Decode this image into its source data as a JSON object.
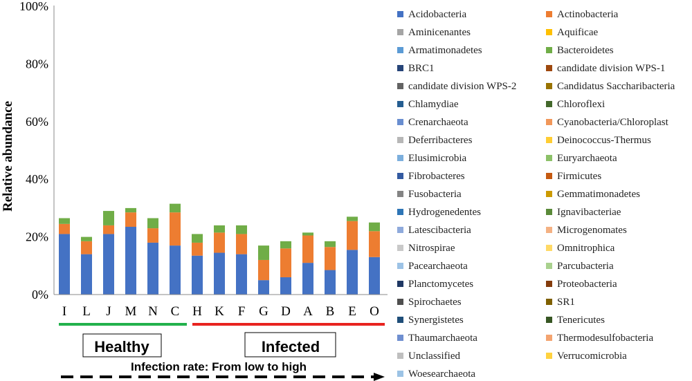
{
  "chart_data": {
    "type": "bar",
    "stacked": true,
    "ylabel": "Relative abundance",
    "ylim": [
      0,
      100
    ],
    "yticks": [
      "0%",
      "20%",
      "40%",
      "60%",
      "80%",
      "100%"
    ],
    "categories": [
      "I",
      "L",
      "J",
      "M",
      "N",
      "C",
      "H",
      "K",
      "F",
      "G",
      "D",
      "A",
      "B",
      "E",
      "O"
    ],
    "groups": [
      {
        "label": "Healthy",
        "members": [
          "I",
          "L",
          "J",
          "M",
          "N",
          "C"
        ],
        "color": "#22B14C"
      },
      {
        "label": "Infected",
        "members": [
          "H",
          "K",
          "F",
          "G",
          "D",
          "A",
          "B",
          "E",
          "O"
        ],
        "color": "#E8231F"
      }
    ],
    "arrow_label": "Infection rate: From low to high",
    "series": [
      {
        "name": "Acidobacteria",
        "color": "#4472C4",
        "values": [
          21,
          14,
          21,
          23.5,
          18,
          17,
          13.5,
          14.5,
          14,
          5,
          6,
          11,
          8.5,
          15.5,
          13
        ]
      },
      {
        "name": "Actinobacteria",
        "color": "#ED7D31",
        "values": [
          3.5,
          4.5,
          3,
          5,
          5,
          11.5,
          4.5,
          7,
          7,
          7,
          10,
          9.5,
          8,
          10,
          9
        ]
      },
      {
        "name": "Aminicenantes",
        "color": "#A5A5A5",
        "values": [
          0,
          0,
          0,
          0,
          0,
          0,
          0,
          0,
          0,
          0,
          0,
          0,
          0,
          0,
          0
        ]
      },
      {
        "name": "Aquificae",
        "color": "#FFC000",
        "values": [
          0,
          0,
          0,
          0,
          0,
          0,
          0,
          0,
          0,
          0,
          0,
          0,
          0,
          0,
          0
        ]
      },
      {
        "name": "Armatimonadetes",
        "color": "#5B9BD5",
        "values": [
          0,
          0,
          0,
          0,
          0,
          0,
          0,
          0,
          0,
          0,
          0,
          0,
          0,
          0,
          0
        ]
      },
      {
        "name": "Bacteroidetes",
        "color": "#70AD47",
        "values": [
          2,
          1.5,
          5,
          1.5,
          3.5,
          3,
          3,
          2.5,
          3,
          5,
          2.5,
          1,
          2,
          1.5,
          3
        ]
      },
      {
        "name": "BRC1",
        "color": "#264478",
        "values": [
          0,
          0,
          0,
          0,
          0,
          0,
          0,
          0,
          0,
          0,
          0,
          0,
          0,
          0,
          0
        ]
      },
      {
        "name": "candidate division WPS-1",
        "color": "#9E480E",
        "values": [
          0,
          0,
          0,
          0,
          0,
          0,
          0,
          0,
          0,
          0,
          0,
          0,
          0,
          0,
          0
        ]
      },
      {
        "name": "candidate division WPS-2",
        "color": "#636363",
        "values": [
          0,
          0,
          0,
          0,
          0,
          0,
          0,
          0,
          0,
          0,
          0,
          0,
          0,
          0,
          0
        ]
      },
      {
        "name": "Candidatus Saccharibacteria",
        "color": "#997300",
        "values": [
          0,
          0,
          0,
          0,
          0,
          0,
          0,
          0,
          0,
          0,
          0,
          0,
          0,
          0,
          0
        ]
      },
      {
        "name": "Chlamydiae",
        "color": "#255E91",
        "values": [
          0,
          0,
          0,
          0,
          0,
          0,
          0,
          0,
          0,
          0,
          0,
          0,
          0,
          0,
          0
        ]
      },
      {
        "name": "Chloroflexi",
        "color": "#43682B",
        "values": [
          0,
          0,
          0,
          0,
          0,
          0,
          0,
          0,
          0,
          0,
          0,
          0,
          0,
          0,
          0
        ]
      },
      {
        "name": "Crenarchaeota",
        "color": "#698ED0",
        "values": [
          0,
          0,
          0,
          0,
          0,
          0,
          0,
          0,
          0,
          0,
          0,
          0,
          0,
          0,
          0
        ]
      },
      {
        "name": "Cyanobacteria/Chloroplast",
        "color": "#F1975A",
        "values": [
          0,
          0,
          0,
          0,
          0,
          0,
          0,
          0,
          0,
          0,
          0,
          0,
          0,
          0,
          0
        ]
      },
      {
        "name": "Deferribacteres",
        "color": "#B7B7B7",
        "values": [
          0,
          0,
          0,
          0,
          0,
          0,
          0,
          0,
          0,
          0,
          0,
          0,
          0,
          0,
          0
        ]
      },
      {
        "name": "Deinococcus-Thermus",
        "color": "#FFCD33",
        "values": [
          0,
          0,
          0,
          0,
          0,
          0,
          0,
          0,
          0,
          0,
          0,
          0,
          0,
          0,
          0
        ]
      },
      {
        "name": "Elusimicrobia",
        "color": "#7CAFDD",
        "values": [
          0,
          0,
          0,
          0,
          0,
          0,
          0,
          0,
          0,
          0,
          0,
          0,
          0,
          0,
          0
        ]
      },
      {
        "name": "Euryarchaeota",
        "color": "#8CC168",
        "values": [
          0,
          0,
          0,
          0,
          0,
          0,
          0,
          0,
          0,
          0,
          0,
          0,
          0,
          0,
          0
        ]
      },
      {
        "name": "Fibrobacteres",
        "color": "#335AA1",
        "values": [
          0,
          0,
          0,
          0,
          0,
          0,
          0,
          0,
          0,
          0,
          0,
          0,
          0,
          0,
          0
        ]
      },
      {
        "name": "Firmicutes",
        "color": "#C55A11",
        "values": [
          0,
          0,
          0,
          0,
          0,
          0,
          0,
          0,
          0,
          0,
          0,
          0,
          0,
          0,
          0
        ]
      },
      {
        "name": "Fusobacteria",
        "color": "#848484",
        "values": [
          0,
          0,
          0,
          0,
          0,
          0,
          0,
          0,
          0,
          0,
          0,
          0,
          0,
          0,
          0
        ]
      },
      {
        "name": "Gemmatimonadetes",
        "color": "#CC9A00",
        "values": [
          0,
          0,
          0,
          0,
          0,
          0,
          0,
          0,
          0,
          0,
          0,
          0,
          0,
          0,
          0
        ]
      },
      {
        "name": "Hydrogenedentes",
        "color": "#2E75B6",
        "values": [
          0,
          0,
          0,
          0,
          0,
          0,
          0,
          0,
          0,
          0,
          0,
          0,
          0,
          0,
          0
        ]
      },
      {
        "name": "Ignavibacteriae",
        "color": "#5A8A39",
        "values": [
          0,
          0,
          0,
          0,
          0,
          0,
          0,
          0,
          0,
          0,
          0,
          0,
          0,
          0,
          0
        ]
      },
      {
        "name": "Latescibacteria",
        "color": "#8FAADC",
        "values": [
          0,
          0,
          0,
          0,
          0,
          0,
          0,
          0,
          0,
          0,
          0,
          0,
          0,
          0,
          0
        ]
      },
      {
        "name": "Microgenomates",
        "color": "#F4B183",
        "values": [
          0,
          0,
          0,
          0,
          0,
          0,
          0,
          0,
          0,
          0,
          0,
          0,
          0,
          0,
          0
        ]
      },
      {
        "name": "Nitrospirae",
        "color": "#C9C9C9",
        "values": [
          0,
          0,
          0,
          0,
          0,
          0,
          0,
          0,
          0,
          0,
          0,
          0,
          0,
          0,
          0
        ]
      },
      {
        "name": "Omnitrophica",
        "color": "#FFD966",
        "values": [
          0,
          0,
          0,
          0,
          0,
          0,
          0,
          0,
          0,
          0,
          0,
          0,
          0,
          0,
          0
        ]
      },
      {
        "name": "Pacearchaeota",
        "color": "#9DC3E6",
        "values": [
          0,
          0,
          0,
          0,
          0,
          0,
          0,
          0,
          0,
          0,
          0,
          0,
          0,
          0,
          0
        ]
      },
      {
        "name": "Parcubacteria",
        "color": "#A9D18E",
        "values": [
          0,
          0,
          0,
          0,
          0,
          0,
          0,
          0,
          0,
          0,
          0,
          0,
          0,
          0,
          0
        ]
      },
      {
        "name": "Planctomycetes",
        "color": "#1F3864",
        "values": [
          0,
          0,
          0,
          0,
          0,
          0,
          0,
          0,
          0,
          0,
          0,
          0,
          0,
          0,
          0
        ]
      },
      {
        "name": "Proteobacteria",
        "color": "#843C0C",
        "values": [
          0,
          0,
          0,
          0,
          0,
          0,
          0,
          0,
          0,
          0,
          0,
          0,
          0,
          0,
          0
        ]
      },
      {
        "name": "Spirochaetes",
        "color": "#4F4F4F",
        "values": [
          0,
          0,
          0,
          0,
          0,
          0,
          0,
          0,
          0,
          0,
          0,
          0,
          0,
          0,
          0
        ]
      },
      {
        "name": "SR1",
        "color": "#7F6000",
        "values": [
          0,
          0,
          0,
          0,
          0,
          0,
          0,
          0,
          0,
          0,
          0,
          0,
          0,
          0,
          0
        ]
      },
      {
        "name": "Synergistetes",
        "color": "#1F4E79",
        "values": [
          0,
          0,
          0,
          0,
          0,
          0,
          0,
          0,
          0,
          0,
          0,
          0,
          0,
          0,
          0
        ]
      },
      {
        "name": "Tenericutes",
        "color": "#375623",
        "values": [
          0,
          0,
          0,
          0,
          0,
          0,
          0,
          0,
          0,
          0,
          0,
          0,
          0,
          0,
          0
        ]
      },
      {
        "name": "Thaumarchaeota",
        "color": "#6F8FD0",
        "values": [
          0,
          0,
          0,
          0,
          0,
          0,
          0,
          0,
          0,
          0,
          0,
          0,
          0,
          0,
          0
        ]
      },
      {
        "name": "Thermodesulfobacteria",
        "color": "#F4A470",
        "values": [
          0,
          0,
          0,
          0,
          0,
          0,
          0,
          0,
          0,
          0,
          0,
          0,
          0,
          0,
          0
        ]
      },
      {
        "name": "Unclassified",
        "color": "#BFBFBF",
        "values": [
          0,
          0,
          0,
          0,
          0,
          0,
          0,
          0,
          0,
          0,
          0,
          0,
          0,
          0,
          0
        ]
      },
      {
        "name": "Verrucomicrobia",
        "color": "#FFD23F",
        "values": [
          0,
          0,
          0,
          0,
          0,
          0,
          0,
          0,
          0,
          0,
          0,
          0,
          0,
          0,
          0
        ]
      },
      {
        "name": "Woesearchaeota",
        "color": "#9CC3E5",
        "values": [
          0,
          0,
          0,
          0,
          0,
          0,
          0,
          0,
          0,
          0,
          0,
          0,
          0,
          0,
          0
        ]
      }
    ],
    "note": "Series order = stacking order (bottom to top, as listed in legend). Values in %; approximate readings."
  }
}
